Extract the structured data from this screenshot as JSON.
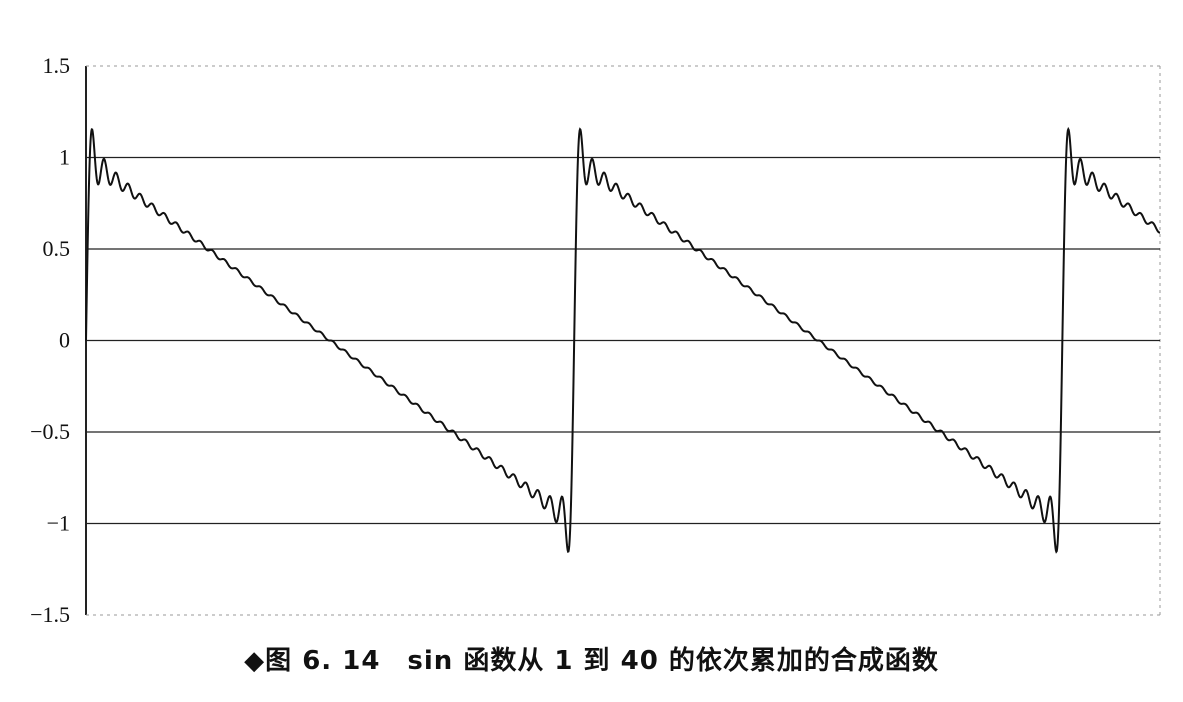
{
  "chart_data": {
    "type": "line",
    "title": "",
    "xlabel": "",
    "ylabel": "",
    "ylim": [
      -1.5,
      1.5
    ],
    "yticks": [
      "1.5",
      "1",
      "0.5",
      "0",
      "-0.5",
      "-1",
      "-1.5"
    ],
    "grid": "horizontal",
    "legend": "none",
    "series": [
      {
        "description": "partial Fourier sum of sine terms n = 1..40 (sawtooth approximation)",
        "terms": 40,
        "periods_shown": 2.2,
        "x": [
          0.0,
          0.02,
          0.05,
          0.1,
          0.2,
          0.3,
          0.4,
          0.5,
          0.6,
          0.7,
          0.8,
          0.9,
          0.95,
          0.98,
          1.0,
          1.02,
          1.05,
          1.1,
          1.2,
          1.3,
          1.4,
          1.5,
          1.6,
          1.7,
          1.8,
          1.9,
          1.95,
          1.98,
          2.0,
          2.02,
          2.05,
          2.1,
          2.2
        ],
        "y": [
          0.0,
          1.05,
          0.9,
          0.88,
          0.79,
          0.6,
          0.4,
          0.2,
          0.0,
          -0.2,
          -0.4,
          -0.6,
          -0.9,
          -1.05,
          0.0,
          1.05,
          0.9,
          0.88,
          0.79,
          0.6,
          0.4,
          0.2,
          0.0,
          -0.2,
          -0.4,
          -0.6,
          -0.9,
          -1.05,
          0.0,
          1.05,
          0.9,
          0.88,
          0.79
        ]
      }
    ]
  },
  "caption": "◆图 6. 14　sin 函数从 1 到 40 的依次累加的合成函数"
}
